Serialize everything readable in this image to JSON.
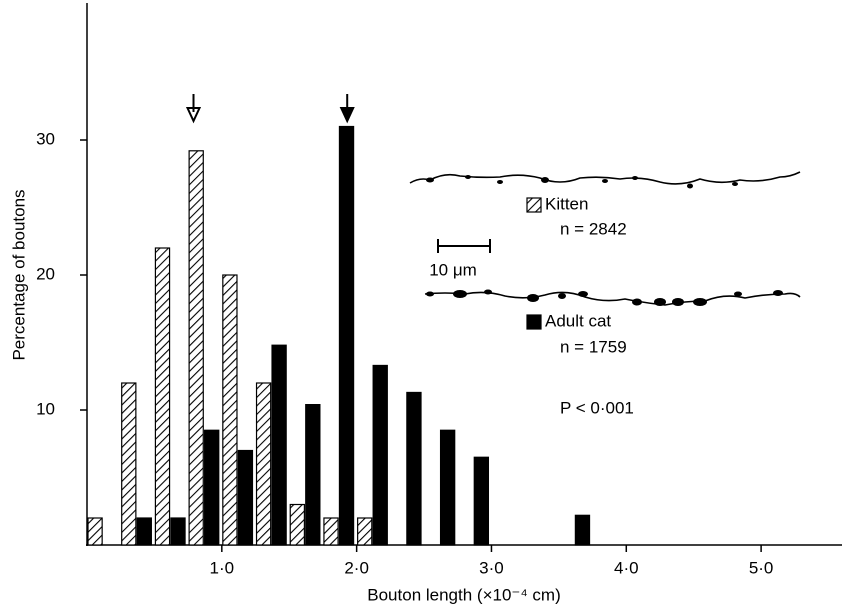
{
  "chart_data": {
    "type": "histogram",
    "ylabel": "Percentage of boutons",
    "xlabel": "Bouton length (×10⁻⁴ cm)",
    "bins": [
      0,
      0.25,
      0.5,
      0.75,
      1.0,
      1.25,
      1.5,
      1.75,
      2.0,
      2.25,
      2.5,
      2.75,
      3.0,
      3.25,
      3.5,
      3.75
    ],
    "series": [
      {
        "name": "Kitten",
        "note": "n = 2842",
        "color": "#ffffff",
        "hatch": true,
        "values": [
          2,
          12,
          22,
          29.2,
          20,
          12,
          3,
          2,
          2,
          0,
          0,
          0,
          0,
          0,
          0
        ]
      },
      {
        "name": "Adult cat",
        "note": "n = 1759",
        "color": "#000000",
        "hatch": false,
        "values": [
          0,
          2,
          2,
          8.5,
          7,
          14.8,
          10.4,
          31,
          13.3,
          11.3,
          8.5,
          6.5,
          0,
          0,
          2.2
        ]
      }
    ],
    "arrows": [
      {
        "x": 0.79,
        "style": "open"
      },
      {
        "x": 1.93,
        "style": "filled"
      }
    ],
    "annotations": [
      "P < 0·001",
      "10 μm"
    ],
    "xlim": [
      0,
      5.6
    ],
    "ylim": [
      0,
      40
    ],
    "xticks": [
      {
        "value": 1,
        "label": "1·0"
      },
      {
        "value": 2,
        "label": "2·0"
      },
      {
        "value": 3,
        "label": "3·0"
      },
      {
        "value": 4,
        "label": "4·0"
      },
      {
        "value": 5,
        "label": "5·0"
      }
    ],
    "yticks": [
      10,
      20,
      30
    ]
  }
}
